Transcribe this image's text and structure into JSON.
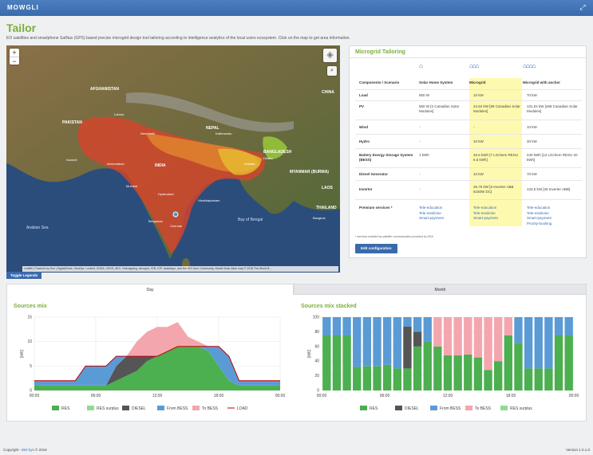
{
  "app": {
    "brand": "MOWGLI"
  },
  "page": {
    "title": "Tailor",
    "intro": "EO satellites and smartphone SatNav (GPS) based precise microgrid design tool tailoring according to intelligence analytics of the local users ecosystem. Click on the map to get area information."
  },
  "map": {
    "zoom_in": "+",
    "zoom_out": "−",
    "toggle_legends": "Toggle Legends",
    "attribution": "Leaflet | Powered by Esri | DigitalGlobe, GeoEye, i-cubed, USDA, USGS, AEX, Getmapping, Aerogrid, IGN, IGP, swisstopo, and the GIS User Community; Modal Solar Atlas map © 2018 The World B...",
    "labels": {
      "afghanistan": "AFGHANISTAN",
      "pakistan": "PAKISTAN",
      "india": "INDIA",
      "nepal": "NEPAL",
      "china": "CHINA",
      "bangladesh": "BANGLADESH",
      "myanmar": "MYANMAR (BURMA)",
      "laos": "LAOS",
      "thailand": "THAILAND",
      "arabian_sea": "Arabian Sea",
      "bay_of_bengal": "Bay of Bengal",
      "new_delhi": "New Delhi",
      "kolkata": "Kolkata",
      "mumbai": "Mumbai",
      "hyderabad": "Hyderabad",
      "bengaluru": "Bengaluru",
      "chennai": "Chennai",
      "ahmedabad": "Ahmedabad",
      "kathmandu": "Kathmandu",
      "dhaka": "Dhaka",
      "karachi": "Karachi",
      "lahore": "Lahore",
      "bangkok": "Bangkok",
      "visakhapatnam": "Visakhapatnam"
    }
  },
  "microgrid": {
    "title": "Microgrid Tailoring",
    "headers": [
      "Components / Scenario",
      "Solar Home System",
      "Microgrid",
      "Microgrid with anchor"
    ],
    "rows": [
      {
        "name": "Load",
        "values": [
          "550 W",
          "10 kW",
          "70 kW"
        ]
      },
      {
        "name": "PV",
        "values": [
          "560 W [2 Canadian Solar Modules]",
          "24.64 kW [88 Canadian Solar Modules]",
          "131.04 kW [468 Canadian Solar Modules]"
        ]
      },
      {
        "name": "Wind",
        "values": [
          "-",
          "-",
          "10 kW"
        ]
      },
      {
        "name": "Hydro",
        "values": [
          "-",
          "10 kW",
          "30 kW"
        ]
      },
      {
        "name": "Battery Energy Storage System (BESS)",
        "values": [
          "1 kWh",
          "45.5 kWh [7 LGchem RESU 6.5 kWh]",
          "240 kWh [12 LGchem RESU 20 kWh]"
        ]
      },
      {
        "name": "Diesel Generator",
        "values": [
          "-",
          "10 kW",
          "70 kW"
        ]
      },
      {
        "name": "Inverter",
        "values": [
          "-",
          "25.75 kW [5 Inverter ABB 5150W DC]",
          "133.6 kW [26 Inverter ABB]"
        ]
      }
    ],
    "services_label": "Premium services *",
    "services": [
      [],
      [
        "Tele-education",
        "Tele-medicine",
        "Smart-payment"
      ],
      [
        "Tele-education",
        "Tele-medicine",
        "Smart-payment"
      ],
      [
        "Tele-education",
        "Tele-medicine",
        "Smart-payment",
        "Priority-booking"
      ]
    ],
    "footnote": "* services enabled by satellite communication provided by ESA",
    "edit_button": "Edit configuration"
  },
  "tabs": {
    "day": "Day",
    "month": "Month"
  },
  "colors": {
    "res": "#4caf50",
    "res_surplus": "#8fdc8f",
    "diesel": "#555555",
    "from_bess": "#5b9bd5",
    "to_bess": "#f4a6ae",
    "load": "#c00000",
    "accent_green": "#7cae3a",
    "brand_blue": "#3a6aac"
  },
  "chart_data": [
    {
      "type": "area",
      "title": "Sources mix",
      "ylabel": "[kW]",
      "xlabel": "",
      "x_ticks": [
        "00:00",
        "06:00",
        "12:00",
        "18:00",
        "00:00"
      ],
      "x": [
        0,
        1,
        2,
        3,
        4,
        5,
        6,
        7,
        8,
        9,
        10,
        11,
        12,
        13,
        14,
        15,
        16,
        17,
        18,
        19,
        20,
        21,
        22,
        23,
        24
      ],
      "ylim": [
        0,
        15
      ],
      "y_ticks": [
        0,
        5,
        10,
        15
      ],
      "series": [
        {
          "name": "RES",
          "key": "res",
          "values": [
            1,
            1,
            1,
            1,
            1,
            1,
            1,
            1,
            2,
            3,
            4,
            6,
            7,
            8,
            9,
            9,
            9,
            8,
            5,
            2,
            1,
            1,
            1,
            1,
            1
          ]
        },
        {
          "name": "RES surplus",
          "key": "res_surplus",
          "values": [
            0,
            0,
            0,
            0,
            0,
            0,
            0,
            0,
            0,
            0,
            0,
            0,
            0,
            0,
            0,
            0,
            0,
            0,
            0,
            0,
            0,
            0,
            0,
            0,
            0
          ]
        },
        {
          "name": "DIESEL",
          "key": "diesel",
          "values": [
            0,
            0,
            0,
            0,
            0,
            0,
            0,
            0,
            3,
            4,
            3,
            1,
            0,
            0,
            0,
            0,
            0,
            0,
            0,
            0,
            0,
            0,
            0,
            0,
            0
          ]
        },
        {
          "name": "From BESS",
          "key": "from_bess",
          "values": [
            1,
            1,
            1,
            1,
            1,
            4,
            4,
            4,
            2,
            0,
            0,
            0,
            0,
            0,
            0,
            0,
            0,
            1,
            4,
            5,
            1,
            1,
            1,
            1,
            1
          ]
        },
        {
          "name": "To BESS",
          "key": "to_bess",
          "values": [
            0,
            0,
            0,
            0,
            0,
            0,
            0,
            0,
            0,
            0,
            3,
            5,
            6,
            5,
            5,
            2,
            1,
            0,
            0,
            0,
            0,
            0,
            0,
            0,
            0
          ]
        }
      ],
      "line": {
        "name": "LOAD",
        "key": "load",
        "values": [
          2,
          2,
          2,
          2,
          2,
          5,
          5,
          5,
          7,
          7,
          7,
          7,
          7,
          8,
          9,
          9,
          9,
          9,
          9,
          7,
          2,
          2,
          2,
          2,
          2
        ]
      },
      "legend": "bottom",
      "legend_items": [
        "RES",
        "RES surplus",
        "DIESEL",
        "From BESS",
        "To BESS",
        "LOAD"
      ]
    },
    {
      "type": "bar",
      "stacked": true,
      "title": "Sources mix stacked",
      "ylabel": "[kW]",
      "xlabel": "",
      "x_ticks": [
        "00:00",
        "06:00",
        "12:00",
        "18:00",
        "00:00"
      ],
      "categories": [
        "0",
        "1",
        "2",
        "3",
        "4",
        "5",
        "6",
        "7",
        "8",
        "9",
        "10",
        "11",
        "12",
        "13",
        "14",
        "15",
        "16",
        "17",
        "18",
        "19",
        "20",
        "21",
        "22",
        "23",
        "24"
      ],
      "ylim": [
        0,
        100
      ],
      "y_ticks": [
        0,
        20,
        40,
        60,
        80,
        100
      ],
      "series": [
        {
          "name": "RES",
          "key": "res",
          "values": [
            75,
            75,
            75,
            32,
            33,
            33,
            35,
            30,
            30,
            60,
            67,
            60,
            48,
            48,
            49,
            45,
            28,
            40,
            75,
            65,
            30,
            30,
            30,
            75,
            75
          ]
        },
        {
          "name": "DIESEL",
          "key": "diesel",
          "values": [
            0,
            0,
            0,
            0,
            0,
            0,
            0,
            0,
            57,
            20,
            0,
            0,
            0,
            0,
            0,
            0,
            0,
            0,
            0,
            0,
            0,
            0,
            0,
            0,
            0
          ]
        },
        {
          "name": "From BESS",
          "key": "from_bess",
          "values": [
            25,
            25,
            25,
            68,
            67,
            67,
            65,
            70,
            13,
            20,
            33,
            0,
            0,
            0,
            0,
            0,
            0,
            0,
            0,
            35,
            70,
            70,
            70,
            25,
            25
          ]
        },
        {
          "name": "To BESS",
          "key": "to_bess",
          "values": [
            0,
            0,
            0,
            0,
            0,
            0,
            0,
            0,
            0,
            0,
            0,
            40,
            52,
            52,
            51,
            55,
            72,
            60,
            25,
            0,
            0,
            0,
            0,
            0,
            0
          ]
        },
        {
          "name": "RES surplus",
          "key": "res_surplus",
          "values": [
            0,
            0,
            0,
            0,
            0,
            0,
            0,
            0,
            0,
            0,
            0,
            0,
            0,
            0,
            0,
            0,
            0,
            0,
            0,
            0,
            0,
            0,
            0,
            0,
            0
          ]
        }
      ],
      "legend": "bottom",
      "legend_items": [
        "RES",
        "DIESEL",
        "From BESS",
        "To BESS",
        "RES surplus"
      ]
    }
  ],
  "footer": {
    "copyright_prefix": "Copyright - ",
    "company": "EM Sys",
    "year": " © 2018",
    "version": "Version 1.0.1.0"
  }
}
